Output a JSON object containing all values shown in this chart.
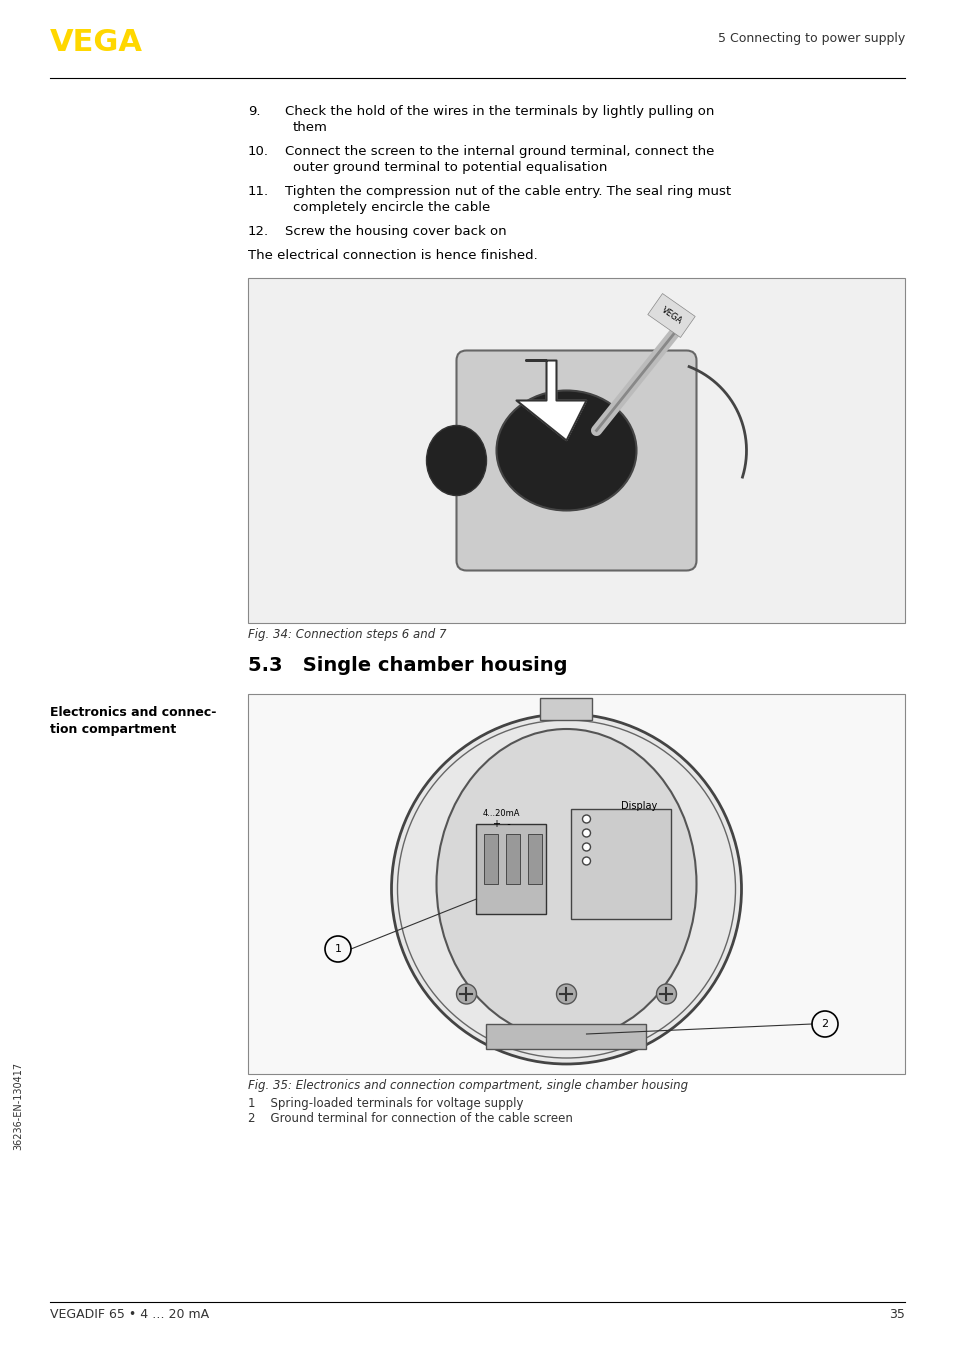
{
  "page_width": 9.54,
  "page_height": 13.54,
  "bg_color": "#ffffff",
  "vega_logo_color": "#FFD700",
  "header_right_text": "5 Connecting to power supply",
  "footer_left_text": "VEGADIF 65 • 4 … 20 mA",
  "footer_right_text": "35",
  "sidebar_text": "36236-EN-130417",
  "section_title": "5.3   Single chamber housing",
  "items": [
    {
      "num": "9.",
      "indent": "    ",
      "text": "Check the hold of the wires in the terminals by lightly pulling on\n        them"
    },
    {
      "num": "10.",
      "indent": "  ",
      "text": "Connect the screen to the internal ground terminal, connect the\n        outer ground terminal to potential equalisation"
    },
    {
      "num": "11.",
      "indent": "  ",
      "text": "Tighten the compression nut of the cable entry. The seal ring must\n        completely encircle the cable"
    },
    {
      "num": "12.",
      "indent": "  ",
      "text": "Screw the housing cover back on"
    }
  ],
  "paragraph_text": "The electrical connection is hence finished.",
  "fig34_caption": "Fig. 34: Connection steps 6 and 7",
  "fig35_caption": "Fig. 35: Electronics and connection compartment, single chamber housing",
  "fig35_note1": "1    Spring-loaded terminals for voltage supply",
  "fig35_note2": "2    Ground terminal for connection of the cable screen",
  "left_label": "Electronics and connec-\ntion compartment"
}
